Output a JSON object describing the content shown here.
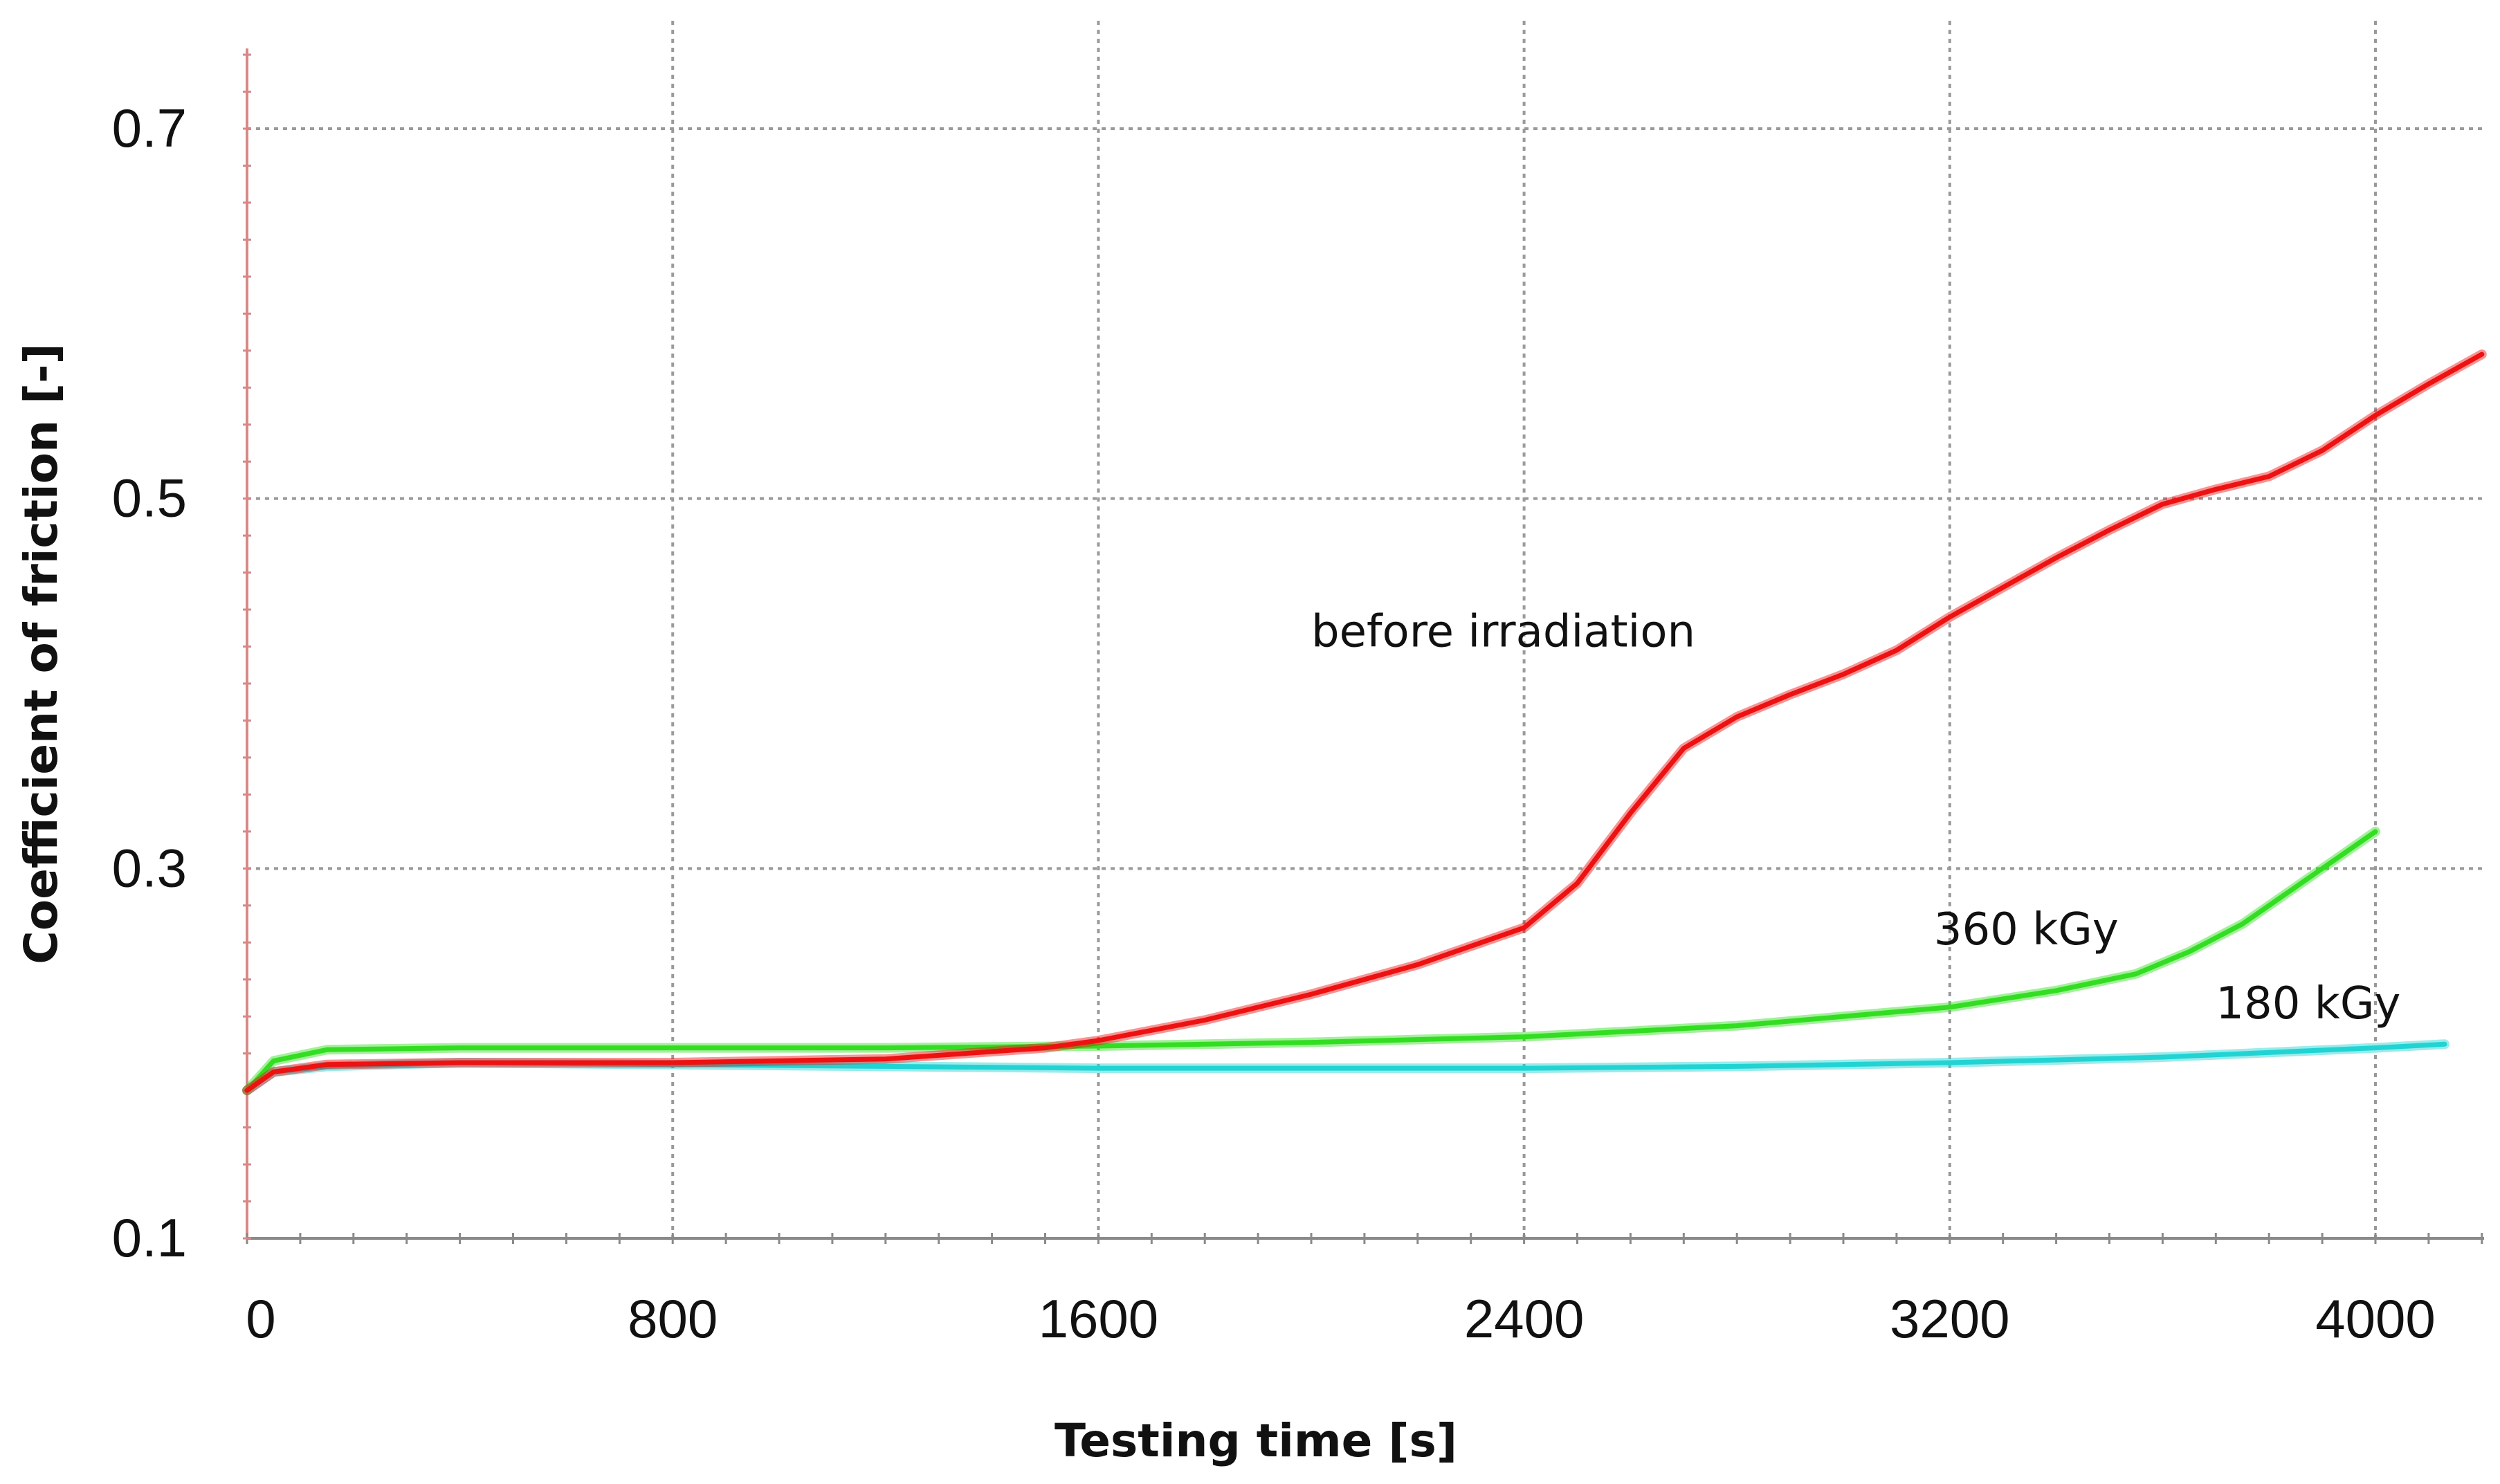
{
  "chart_data": {
    "type": "line",
    "title": "",
    "xlabel": "Testing time [s]",
    "ylabel": "Coefficient of friction [-]",
    "xlim": [
      0,
      4200
    ],
    "ylim": [
      0.1,
      0.76
    ],
    "xticks": [
      0,
      800,
      1600,
      2400,
      3200,
      4000
    ],
    "xtick_labels": [
      "0",
      "800",
      "1600",
      "2400",
      "3200",
      "4000"
    ],
    "yticks": [
      0.1,
      0.3,
      0.5,
      0.7
    ],
    "ytick_labels": [
      "0.1",
      "0.3",
      "0.5",
      "0.7"
    ],
    "grid": true,
    "series": [
      {
        "name": "180 kGy",
        "color": "#22d3d3",
        "x": [
          0,
          50,
          150,
          400,
          800,
          1200,
          1600,
          2000,
          2400,
          2800,
          3200,
          3600,
          4000,
          4130
        ],
        "y": [
          0.18,
          0.19,
          0.193,
          0.195,
          0.194,
          0.193,
          0.192,
          0.192,
          0.192,
          0.193,
          0.195,
          0.198,
          0.203,
          0.205
        ]
      },
      {
        "name": "360 kGy",
        "color": "#33dd22",
        "x": [
          0,
          50,
          150,
          400,
          800,
          1200,
          1600,
          2000,
          2400,
          2800,
          3200,
          3400,
          3550,
          3650,
          3750,
          3850,
          3950,
          4000
        ],
        "y": [
          0.18,
          0.196,
          0.202,
          0.203,
          0.203,
          0.203,
          0.204,
          0.206,
          0.209,
          0.215,
          0.225,
          0.234,
          0.243,
          0.255,
          0.27,
          0.29,
          0.31,
          0.32
        ]
      },
      {
        "name": "before irradiation",
        "color": "#ee1111",
        "x": [
          0,
          50,
          150,
          400,
          800,
          1200,
          1500,
          1600,
          1800,
          2000,
          2200,
          2400,
          2500,
          2600,
          2700,
          2800,
          2900,
          3000,
          3100,
          3200,
          3300,
          3400,
          3500,
          3600,
          3700,
          3800,
          3900,
          4000,
          4100,
          4200
        ],
        "y": [
          0.18,
          0.19,
          0.194,
          0.195,
          0.195,
          0.197,
          0.203,
          0.207,
          0.218,
          0.232,
          0.248,
          0.268,
          0.292,
          0.33,
          0.365,
          0.382,
          0.394,
          0.405,
          0.418,
          0.436,
          0.452,
          0.468,
          0.483,
          0.497,
          0.505,
          0.512,
          0.526,
          0.545,
          0.562,
          0.578
        ]
      }
    ],
    "annotations": [
      {
        "text": "before irradiation",
        "x": 2000,
        "y": 0.42
      },
      {
        "text": "360 kGy",
        "x": 3170,
        "y": 0.259
      },
      {
        "text": "180 kGy",
        "x": 3700,
        "y": 0.219
      }
    ]
  }
}
